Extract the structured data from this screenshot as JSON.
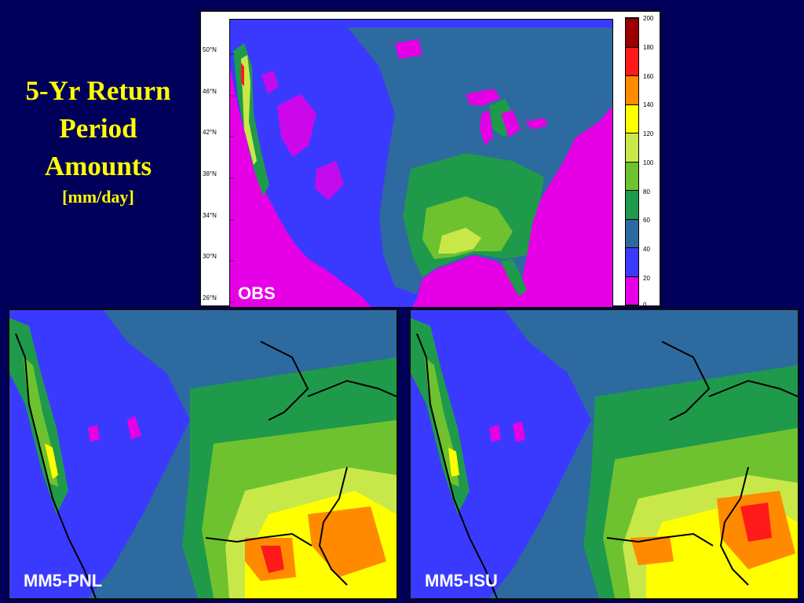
{
  "title": {
    "line1": "5-Yr Return",
    "line2": "Period",
    "line3": "Amounts",
    "unit": "[mm/day]"
  },
  "panels": {
    "obs": {
      "label": "OBS"
    },
    "pnl": {
      "label": "MM5-PNL"
    },
    "isu": {
      "label": "MM5-ISU"
    }
  },
  "latitude_labels": [
    "50°N",
    "46°N",
    "42°N",
    "38°N",
    "34°N",
    "30°N",
    "26°N"
  ],
  "colorbar": {
    "ticks": [
      "200",
      "180",
      "160",
      "140",
      "120",
      "100",
      "80",
      "60",
      "40",
      "20",
      "0"
    ],
    "colors": [
      "#9b0000",
      "#ff1a1a",
      "#ff8a00",
      "#ffff00",
      "#c8e84a",
      "#6ec230",
      "#1f9a4a",
      "#2d6aa0",
      "#3a3aff",
      "#e600e6"
    ]
  },
  "colors": {
    "background": "#00005a",
    "title": "#ffff00"
  }
}
